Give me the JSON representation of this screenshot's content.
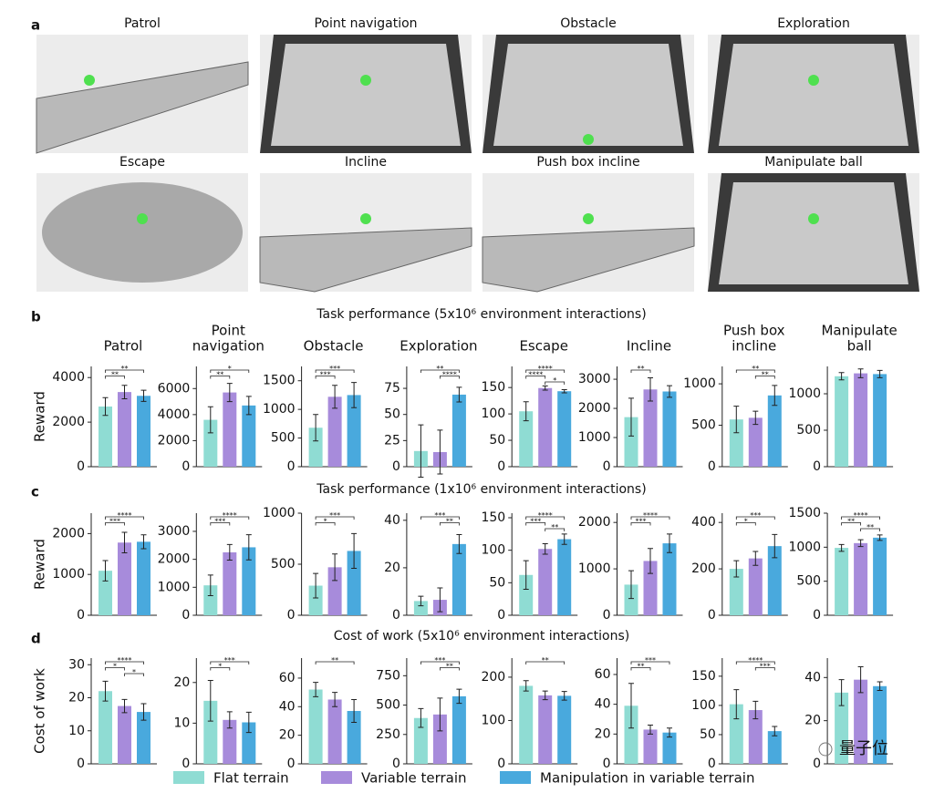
{
  "scenes": {
    "label": "a",
    "titles": [
      "Patrol",
      "Point navigation",
      "Obstacle",
      "Exploration",
      "Escape",
      "Incline",
      "Push box incline",
      "Manipulate ball"
    ]
  },
  "panels": [
    {
      "label": "b",
      "title": "Task performance (5x10⁶ environment interactions)"
    },
    {
      "label": "c",
      "title": "Task performance (1x10⁶ environment interactions)"
    },
    {
      "label": "d",
      "title": "Cost of work (5x10⁶ environment interactions)"
    }
  ],
  "legend": {
    "names": [
      "Flat terrain",
      "Variable terrain",
      "Manipulation in variable terrain"
    ],
    "colors": [
      "#8fdcd3",
      "#a78bdb",
      "#49a9dd"
    ]
  },
  "watermark": "量子位",
  "chart_data": [
    {
      "type": "bar",
      "title": [
        "Patrol"
      ],
      "ylabel": "Reward",
      "values": [
        2700,
        3350,
        3180
      ],
      "errors": [
        400,
        300,
        250
      ],
      "ylim": [
        0,
        4500
      ],
      "yticks": [
        0,
        2000,
        4000
      ],
      "significance": [
        {
          "bars": [
            0,
            2
          ],
          "label": "**"
        },
        {
          "bars": [
            0,
            1
          ],
          "label": "**"
        }
      ]
    },
    {
      "type": "bar",
      "title": [
        "Point",
        "navigation"
      ],
      "values": [
        3600,
        5700,
        4700
      ],
      "errors": [
        1000,
        700,
        700
      ],
      "ylim": [
        0,
        7700
      ],
      "yticks": [
        0,
        2000,
        4000,
        6000
      ],
      "significance": [
        {
          "bars": [
            0,
            2
          ],
          "label": "*"
        },
        {
          "bars": [
            0,
            1
          ],
          "label": "**"
        }
      ]
    },
    {
      "type": "bar",
      "title": [
        "Obstacle"
      ],
      "values": [
        680,
        1220,
        1250
      ],
      "errors": [
        230,
        200,
        220
      ],
      "ylim": [
        0,
        1750
      ],
      "yticks": [
        0,
        500,
        1000,
        1500
      ],
      "significance": [
        {
          "bars": [
            0,
            2
          ],
          "label": "***"
        },
        {
          "bars": [
            0,
            1
          ],
          "label": "***"
        }
      ]
    },
    {
      "type": "bar",
      "title": [
        "Exploration"
      ],
      "values": [
        15,
        14,
        69
      ],
      "errors": [
        25,
        21,
        7
      ],
      "ylim": [
        0,
        96
      ],
      "yticks": [
        0,
        25,
        50,
        75
      ],
      "significance": [
        {
          "bars": [
            0,
            2
          ],
          "label": "**"
        },
        {
          "bars": [
            1,
            2
          ],
          "label": "****"
        }
      ]
    },
    {
      "type": "bar",
      "title": [
        "Escape"
      ],
      "values": [
        105,
        149,
        143
      ],
      "errors": [
        18,
        4,
        3
      ],
      "ylim": [
        0,
        190
      ],
      "yticks": [
        0,
        50,
        100,
        150
      ],
      "significance": [
        {
          "bars": [
            0,
            2
          ],
          "label": "****"
        },
        {
          "bars": [
            0,
            1
          ],
          "label": "****"
        },
        {
          "bars": [
            1,
            2
          ],
          "label": "*"
        }
      ]
    },
    {
      "type": "bar",
      "title": [
        "Incline"
      ],
      "values": [
        1700,
        2650,
        2580
      ],
      "errors": [
        650,
        400,
        200
      ],
      "ylim": [
        0,
        3440
      ],
      "yticks": [
        0,
        1000,
        2000,
        3000
      ],
      "significance": [
        {
          "bars": [
            0,
            1
          ],
          "label": "**"
        }
      ]
    },
    {
      "type": "bar",
      "title": [
        "Push box",
        "incline"
      ],
      "values": [
        570,
        590,
        860
      ],
      "errors": [
        160,
        80,
        120
      ],
      "ylim": [
        0,
        1210
      ],
      "yticks": [
        0,
        500,
        1000
      ],
      "significance": [
        {
          "bars": [
            0,
            2
          ],
          "label": "**"
        },
        {
          "bars": [
            1,
            2
          ],
          "label": "**"
        }
      ]
    },
    {
      "type": "bar",
      "title": [
        "Manipulate",
        "ball"
      ],
      "values": [
        1240,
        1280,
        1270
      ],
      "errors": [
        50,
        60,
        50
      ],
      "ylim": [
        0,
        1375
      ],
      "yticks": [
        0,
        500,
        1000
      ],
      "significance": []
    },
    {
      "type": "bar",
      "ylabel": "Reward",
      "values": [
        1090,
        1780,
        1800
      ],
      "errors": [
        250,
        250,
        170
      ],
      "ylim": [
        0,
        2500
      ],
      "yticks": [
        0,
        1000,
        2000
      ],
      "significance": [
        {
          "bars": [
            0,
            2
          ],
          "label": "****"
        },
        {
          "bars": [
            0,
            1
          ],
          "label": "***"
        }
      ]
    },
    {
      "type": "bar",
      "values": [
        1070,
        2250,
        2430
      ],
      "errors": [
        370,
        280,
        450
      ],
      "ylim": [
        0,
        3650
      ],
      "yticks": [
        0,
        1000,
        2000,
        3000
      ],
      "significance": [
        {
          "bars": [
            0,
            2
          ],
          "label": "****"
        },
        {
          "bars": [
            0,
            1
          ],
          "label": "***"
        }
      ]
    },
    {
      "type": "bar",
      "values": [
        290,
        470,
        630
      ],
      "errors": [
        120,
        130,
        170
      ],
      "ylim": [
        0,
        1000
      ],
      "yticks": [
        0,
        500,
        1000
      ],
      "significance": [
        {
          "bars": [
            0,
            2
          ],
          "label": "***"
        },
        {
          "bars": [
            0,
            1
          ],
          "label": "*"
        }
      ]
    },
    {
      "type": "bar",
      "values": [
        6,
        6.5,
        30
      ],
      "errors": [
        2,
        5,
        4
      ],
      "ylim": [
        0,
        43
      ],
      "yticks": [
        0,
        20,
        40
      ],
      "significance": [
        {
          "bars": [
            0,
            2
          ],
          "label": "***"
        },
        {
          "bars": [
            1,
            2
          ],
          "label": "**"
        }
      ]
    },
    {
      "type": "bar",
      "values": [
        62,
        102,
        117
      ],
      "errors": [
        22,
        8,
        8
      ],
      "ylim": [
        0,
        157
      ],
      "yticks": [
        0,
        50,
        100,
        150
      ],
      "significance": [
        {
          "bars": [
            0,
            2
          ],
          "label": "****"
        },
        {
          "bars": [
            0,
            1
          ],
          "label": "***"
        },
        {
          "bars": [
            1,
            2
          ],
          "label": "**"
        }
      ]
    },
    {
      "type": "bar",
      "values": [
        660,
        1170,
        1550
      ],
      "errors": [
        300,
        270,
        200
      ],
      "ylim": [
        0,
        2200
      ],
      "yticks": [
        0,
        1000,
        2000
      ],
      "significance": [
        {
          "bars": [
            0,
            2
          ],
          "label": "****"
        },
        {
          "bars": [
            0,
            1
          ],
          "label": "***"
        }
      ]
    },
    {
      "type": "bar",
      "values": [
        200,
        245,
        298
      ],
      "errors": [
        35,
        30,
        50
      ],
      "ylim": [
        0,
        440
      ],
      "yticks": [
        0,
        200,
        400
      ],
      "significance": [
        {
          "bars": [
            0,
            2
          ],
          "label": "***"
        },
        {
          "bars": [
            0,
            1
          ],
          "label": "*"
        }
      ]
    },
    {
      "type": "bar",
      "values": [
        990,
        1060,
        1140
      ],
      "errors": [
        50,
        50,
        40
      ],
      "ylim": [
        0,
        1500
      ],
      "yticks": [
        0,
        500,
        1000,
        1500
      ],
      "significance": [
        {
          "bars": [
            0,
            2
          ],
          "label": "****"
        },
        {
          "bars": [
            0,
            1
          ],
          "label": "**"
        },
        {
          "bars": [
            1,
            2
          ],
          "label": "**"
        }
      ]
    },
    {
      "type": "bar",
      "ylabel": "Cost of work",
      "values": [
        22,
        17.5,
        15.7
      ],
      "errors": [
        3,
        2,
        2.5
      ],
      "ylim": [
        0,
        32
      ],
      "yticks": [
        0,
        10,
        20,
        30
      ],
      "significance": [
        {
          "bars": [
            0,
            2
          ],
          "label": "****"
        },
        {
          "bars": [
            0,
            1
          ],
          "label": "*"
        },
        {
          "bars": [
            1,
            2
          ],
          "label": "*"
        }
      ]
    },
    {
      "type": "bar",
      "values": [
        15.5,
        10.8,
        10.2
      ],
      "errors": [
        5,
        2,
        2.5
      ],
      "ylim": [
        0,
        26
      ],
      "yticks": [
        0,
        10,
        20
      ],
      "significance": [
        {
          "bars": [
            0,
            2
          ],
          "label": "***"
        },
        {
          "bars": [
            0,
            1
          ],
          "label": "*"
        }
      ]
    },
    {
      "type": "bar",
      "values": [
        52,
        45,
        37
      ],
      "errors": [
        5,
        5,
        8
      ],
      "ylim": [
        0,
        74
      ],
      "yticks": [
        0,
        20,
        40,
        60
      ],
      "significance": [
        {
          "bars": [
            0,
            2
          ],
          "label": "**"
        }
      ]
    },
    {
      "type": "bar",
      "values": [
        390,
        420,
        575
      ],
      "errors": [
        80,
        140,
        60
      ],
      "ylim": [
        0,
        900
      ],
      "yticks": [
        0,
        250,
        500,
        750
      ],
      "significance": [
        {
          "bars": [
            0,
            2
          ],
          "label": "***"
        },
        {
          "bars": [
            1,
            2
          ],
          "label": "**"
        }
      ]
    },
    {
      "type": "bar",
      "values": [
        180,
        158,
        157
      ],
      "errors": [
        12,
        10,
        10
      ],
      "ylim": [
        0,
        244
      ],
      "yticks": [
        0,
        100,
        200
      ],
      "significance": [
        {
          "bars": [
            0,
            2
          ],
          "label": "**"
        }
      ]
    },
    {
      "type": "bar",
      "values": [
        39,
        23,
        21
      ],
      "errors": [
        15,
        3,
        3
      ],
      "ylim": [
        0,
        71
      ],
      "yticks": [
        0,
        20,
        40,
        60
      ],
      "significance": [
        {
          "bars": [
            0,
            2
          ],
          "label": "***"
        },
        {
          "bars": [
            0,
            1
          ],
          "label": "**"
        }
      ]
    },
    {
      "type": "bar",
      "values": [
        102,
        92,
        56
      ],
      "errors": [
        25,
        15,
        8
      ],
      "ylim": [
        0,
        181
      ],
      "yticks": [
        0,
        50,
        100,
        150
      ],
      "significance": [
        {
          "bars": [
            0,
            2
          ],
          "label": "****"
        },
        {
          "bars": [
            1,
            2
          ],
          "label": "***"
        }
      ]
    },
    {
      "type": "bar",
      "values": [
        33,
        39,
        36
      ],
      "errors": [
        6,
        6,
        2
      ],
      "ylim": [
        0,
        49
      ],
      "yticks": [
        0,
        20,
        40
      ],
      "significance": []
    }
  ]
}
